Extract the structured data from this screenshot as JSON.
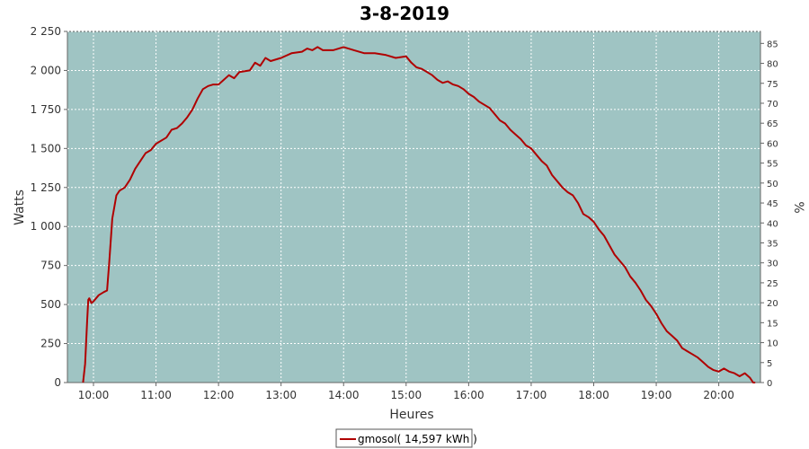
{
  "chart_data": {
    "type": "line",
    "title": "3-8-2019",
    "xlabel": "Heures",
    "ylabel": "Watts",
    "y2label": "%",
    "x_ticks": [
      "10:00",
      "11:00",
      "12:00",
      "13:00",
      "14:00",
      "15:00",
      "16:00",
      "17:00",
      "18:00",
      "19:00",
      "20:00"
    ],
    "y_ticks": [
      "0",
      "250",
      "500",
      "750",
      "1 000",
      "1 250",
      "1 500",
      "1 750",
      "2 000",
      "2 250"
    ],
    "y2_ticks": [
      "0",
      "5",
      "10",
      "15",
      "20",
      "25",
      "30",
      "35",
      "40",
      "45",
      "50",
      "55",
      "60",
      "65",
      "70",
      "75",
      "80",
      "85"
    ],
    "xlim": [
      "09:35",
      "20:40"
    ],
    "ylim": [
      0,
      2250
    ],
    "y2lim": [
      0,
      88
    ],
    "grid": true,
    "plot_bg": "#9fc4c3",
    "line_color": "#b00000",
    "legend_position": "bottom-center",
    "series": [
      {
        "name": "gmosol( 14,597 kWh )",
        "points": [
          [
            "09:50",
            0
          ],
          [
            "09:52",
            120
          ],
          [
            "09:54",
            400
          ],
          [
            "09:55",
            530
          ],
          [
            "09:56",
            540
          ],
          [
            "09:58",
            510
          ],
          [
            "10:00",
            520
          ],
          [
            "10:05",
            560
          ],
          [
            "10:10",
            580
          ],
          [
            "10:13",
            590
          ],
          [
            "10:15",
            760
          ],
          [
            "10:18",
            1050
          ],
          [
            "10:22",
            1200
          ],
          [
            "10:25",
            1230
          ],
          [
            "10:30",
            1250
          ],
          [
            "10:35",
            1300
          ],
          [
            "10:40",
            1370
          ],
          [
            "10:45",
            1420
          ],
          [
            "10:50",
            1470
          ],
          [
            "10:55",
            1490
          ],
          [
            "11:00",
            1530
          ],
          [
            "11:10",
            1570
          ],
          [
            "11:15",
            1620
          ],
          [
            "11:20",
            1630
          ],
          [
            "11:25",
            1660
          ],
          [
            "11:30",
            1700
          ],
          [
            "11:35",
            1750
          ],
          [
            "11:40",
            1820
          ],
          [
            "11:45",
            1880
          ],
          [
            "11:50",
            1900
          ],
          [
            "11:55",
            1910
          ],
          [
            "12:00",
            1910
          ],
          [
            "12:10",
            1970
          ],
          [
            "12:15",
            1950
          ],
          [
            "12:20",
            1990
          ],
          [
            "12:30",
            2000
          ],
          [
            "12:35",
            2050
          ],
          [
            "12:40",
            2030
          ],
          [
            "12:45",
            2080
          ],
          [
            "12:50",
            2060
          ],
          [
            "13:00",
            2080
          ],
          [
            "13:10",
            2110
          ],
          [
            "13:20",
            2120
          ],
          [
            "13:25",
            2140
          ],
          [
            "13:30",
            2130
          ],
          [
            "13:35",
            2150
          ],
          [
            "13:40",
            2130
          ],
          [
            "13:50",
            2130
          ],
          [
            "14:00",
            2150
          ],
          [
            "14:10",
            2130
          ],
          [
            "14:20",
            2110
          ],
          [
            "14:30",
            2110
          ],
          [
            "14:40",
            2100
          ],
          [
            "14:50",
            2080
          ],
          [
            "15:00",
            2090
          ],
          [
            "15:05",
            2050
          ],
          [
            "15:10",
            2020
          ],
          [
            "15:15",
            2010
          ],
          [
            "15:20",
            1990
          ],
          [
            "15:25",
            1970
          ],
          [
            "15:30",
            1940
          ],
          [
            "15:35",
            1920
          ],
          [
            "15:40",
            1930
          ],
          [
            "15:45",
            1910
          ],
          [
            "15:50",
            1900
          ],
          [
            "15:55",
            1880
          ],
          [
            "16:00",
            1850
          ],
          [
            "16:05",
            1830
          ],
          [
            "16:10",
            1800
          ],
          [
            "16:15",
            1780
          ],
          [
            "16:20",
            1760
          ],
          [
            "16:25",
            1720
          ],
          [
            "16:30",
            1680
          ],
          [
            "16:35",
            1660
          ],
          [
            "16:40",
            1620
          ],
          [
            "16:45",
            1590
          ],
          [
            "16:50",
            1560
          ],
          [
            "16:55",
            1520
          ],
          [
            "17:00",
            1500
          ],
          [
            "17:05",
            1460
          ],
          [
            "17:10",
            1420
          ],
          [
            "17:15",
            1390
          ],
          [
            "17:20",
            1330
          ],
          [
            "17:25",
            1290
          ],
          [
            "17:30",
            1250
          ],
          [
            "17:35",
            1220
          ],
          [
            "17:40",
            1200
          ],
          [
            "17:45",
            1150
          ],
          [
            "17:50",
            1080
          ],
          [
            "17:55",
            1060
          ],
          [
            "18:00",
            1030
          ],
          [
            "18:05",
            980
          ],
          [
            "18:10",
            940
          ],
          [
            "18:15",
            880
          ],
          [
            "18:20",
            820
          ],
          [
            "18:25",
            780
          ],
          [
            "18:30",
            740
          ],
          [
            "18:35",
            680
          ],
          [
            "18:40",
            640
          ],
          [
            "18:45",
            590
          ],
          [
            "18:50",
            530
          ],
          [
            "18:55",
            490
          ],
          [
            "19:00",
            440
          ],
          [
            "19:05",
            380
          ],
          [
            "19:10",
            330
          ],
          [
            "19:15",
            300
          ],
          [
            "19:20",
            270
          ],
          [
            "19:25",
            220
          ],
          [
            "19:30",
            200
          ],
          [
            "19:35",
            180
          ],
          [
            "19:40",
            160
          ],
          [
            "19:45",
            130
          ],
          [
            "19:50",
            100
          ],
          [
            "19:55",
            80
          ],
          [
            "20:00",
            70
          ],
          [
            "20:05",
            90
          ],
          [
            "20:10",
            70
          ],
          [
            "20:15",
            60
          ],
          [
            "20:20",
            40
          ],
          [
            "20:25",
            60
          ],
          [
            "20:30",
            30
          ],
          [
            "20:33",
            0
          ],
          [
            "20:35",
            0
          ]
        ]
      }
    ]
  }
}
